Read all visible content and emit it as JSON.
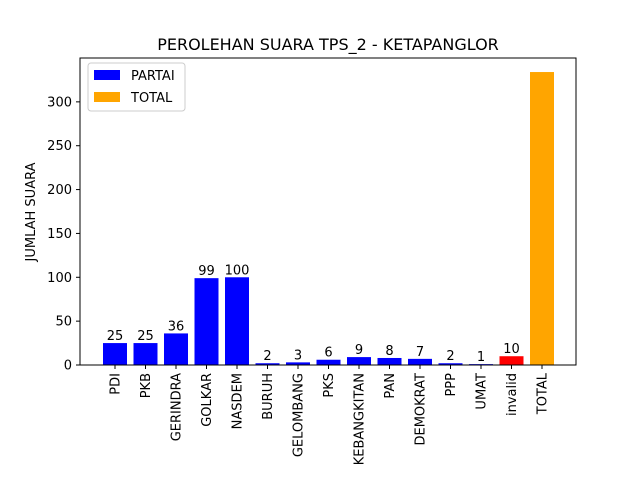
{
  "chart_data": {
    "type": "bar",
    "title": "PEROLEHAN SUARA TPS_2 - KETAPANGLOR",
    "xlabel": "",
    "ylabel": "JUMLAH SUARA",
    "ylim": [
      0,
      350
    ],
    "yticks": [
      0,
      50,
      100,
      150,
      200,
      250,
      300
    ],
    "categories": [
      "PDI",
      "PKB",
      "GERINDRA",
      "GOLKAR",
      "NASDEM",
      "BURUH",
      "GELOMBANG",
      "PKS",
      "KEBANGKITAN",
      "PAN",
      "DEMOKRAT",
      "PPP",
      "UMAT",
      "invalid",
      "TOTAL"
    ],
    "values": [
      25,
      25,
      36,
      99,
      100,
      2,
      3,
      6,
      9,
      8,
      7,
      2,
      1,
      10,
      334
    ],
    "data_labels": [
      "25",
      "25",
      "36",
      "99",
      "100",
      "2",
      "3",
      "6",
      "9",
      "8",
      "7",
      "2",
      "1",
      "10",
      ""
    ],
    "bar_colors": [
      "#0000ff",
      "#0000ff",
      "#0000ff",
      "#0000ff",
      "#0000ff",
      "#0000ff",
      "#0000ff",
      "#0000ff",
      "#0000ff",
      "#0000ff",
      "#0000ff",
      "#0000ff",
      "#0000ff",
      "#ff0000",
      "#ffa500"
    ],
    "legend": {
      "position": "top-left",
      "entries": [
        {
          "label": "PARTAI",
          "color": "#0000ff"
        },
        {
          "label": "TOTAL",
          "color": "#ffa500"
        }
      ]
    },
    "grid": false
  }
}
